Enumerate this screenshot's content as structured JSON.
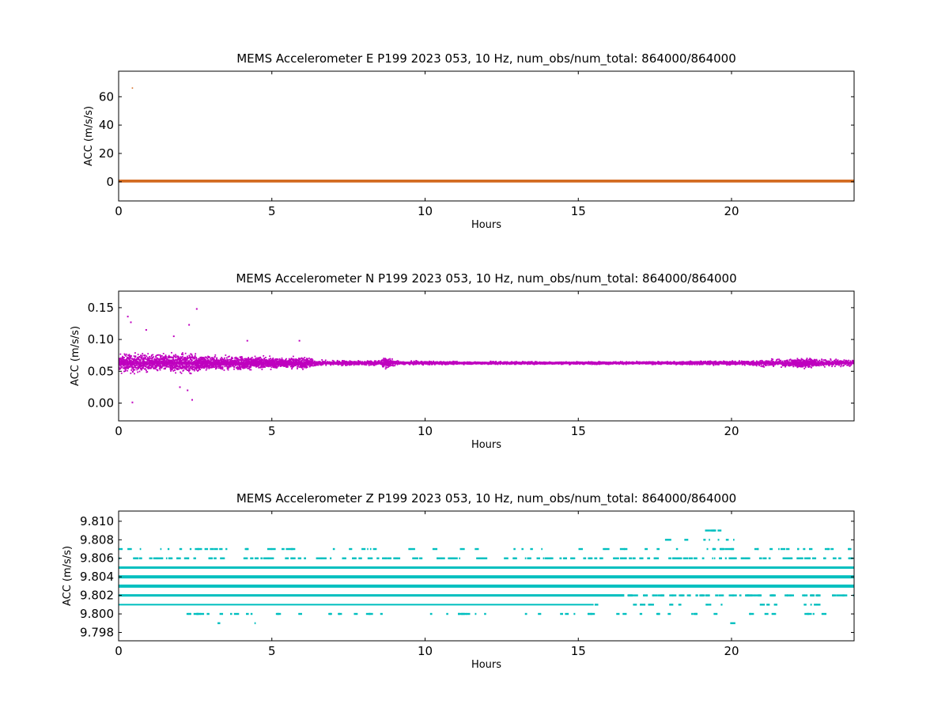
{
  "colors": {
    "E": "#d2691e",
    "N": "#bf00bf",
    "Z": "#00bfbf",
    "frame": "#000000"
  },
  "chart_data": [
    {
      "type": "scatter",
      "title": "MEMS Accelerometer E P199 2023 053, 10 Hz, num_obs/num_total: 864000/864000",
      "xlabel": "Hours",
      "ylabel": "ACC (m/s/s)",
      "xlim": [
        0,
        24
      ],
      "ylim": [
        -13.5,
        78
      ],
      "xticks": [
        "0",
        "5",
        "10",
        "15",
        "20"
      ],
      "xtick_values": [
        0,
        5,
        10,
        15,
        20
      ],
      "yticks": [
        "0",
        "20",
        "40",
        "60"
      ],
      "ytick_values": [
        0,
        20,
        40,
        60
      ],
      "series": [
        {
          "band": {
            "x": [
              0,
              24
            ],
            "center": 0.1,
            "min": -0.5,
            "max": 0.7
          },
          "outliers": [
            {
              "x": 0.45,
              "y": 66
            }
          ]
        }
      ]
    },
    {
      "type": "scatter",
      "title": "MEMS Accelerometer N P199 2023 053, 10 Hz, num_obs/num_total: 864000/864000",
      "xlabel": "Hours",
      "ylabel": "ACC (m/s/s)",
      "xlim": [
        0,
        24
      ],
      "ylim": [
        -0.028,
        0.176
      ],
      "xticks": [
        "0",
        "5",
        "10",
        "15",
        "20"
      ],
      "xtick_values": [
        0,
        5,
        10,
        15,
        20
      ],
      "yticks": [
        "0.00",
        "0.05",
        "0.10",
        "0.15"
      ],
      "ytick_values": [
        0.0,
        0.05,
        0.1,
        0.15
      ],
      "series": [
        {
          "center": 0.063,
          "envelope": [
            [
              0,
              0.013
            ],
            [
              0.5,
              0.014
            ],
            [
              1,
              0.012
            ],
            [
              1.5,
              0.013
            ],
            [
              2,
              0.015
            ],
            [
              2.5,
              0.014
            ],
            [
              3,
              0.011
            ],
            [
              3.5,
              0.009
            ],
            [
              4,
              0.01
            ],
            [
              4.5,
              0.009
            ],
            [
              5,
              0.008
            ],
            [
              5.5,
              0.007
            ],
            [
              6,
              0.01
            ],
            [
              6.5,
              0.004
            ],
            [
              7,
              0.004
            ],
            [
              7.5,
              0.004
            ],
            [
              8,
              0.003
            ],
            [
              8.8,
              0.007
            ],
            [
              9.2,
              0.002
            ],
            [
              10,
              0.003
            ],
            [
              11,
              0.002
            ],
            [
              12,
              0.002
            ],
            [
              12.3,
              0.003
            ],
            [
              13,
              0.002
            ],
            [
              14,
              0.002
            ],
            [
              15,
              0.002
            ],
            [
              16,
              0.002
            ],
            [
              17,
              0.002
            ],
            [
              18,
              0.002
            ],
            [
              19,
              0.003
            ],
            [
              20,
              0.003
            ],
            [
              20.5,
              0.004
            ],
            [
              21,
              0.005
            ],
            [
              21.5,
              0.005
            ],
            [
              22,
              0.006
            ],
            [
              22.3,
              0.008
            ],
            [
              23,
              0.005
            ],
            [
              24,
              0.006
            ]
          ],
          "outliers": [
            {
              "x": 0.3,
              "y": 0.136
            },
            {
              "x": 0.4,
              "y": 0.127
            },
            {
              "x": 0.45,
              "y": 0.001
            },
            {
              "x": 0.9,
              "y": 0.115
            },
            {
              "x": 1.8,
              "y": 0.105
            },
            {
              "x": 2.3,
              "y": 0.123
            },
            {
              "x": 2.4,
              "y": 0.005
            },
            {
              "x": 2.55,
              "y": 0.148
            },
            {
              "x": 2.25,
              "y": 0.02
            },
            {
              "x": 2.0,
              "y": 0.025
            },
            {
              "x": 4.2,
              "y": 0.098
            },
            {
              "x": 5.9,
              "y": 0.098
            }
          ]
        }
      ]
    },
    {
      "type": "scatter",
      "title": "MEMS Accelerometer Z P199 2023 053, 10 Hz, num_obs/num_total: 864000/864000",
      "xlabel": "Hours",
      "ylabel": "ACC (m/s/s)",
      "xlim": [
        0,
        24
      ],
      "ylim": [
        9.7971,
        9.8111
      ],
      "xticks": [
        "0",
        "5",
        "10",
        "15",
        "20"
      ],
      "xtick_values": [
        0,
        5,
        10,
        15,
        20
      ],
      "yticks": [
        "9.798",
        "9.800",
        "9.802",
        "9.804",
        "9.806",
        "9.808",
        "9.810"
      ],
      "ytick_values": [
        9.798,
        9.8,
        9.802,
        9.804,
        9.806,
        9.808,
        9.81
      ],
      "series": [
        {
          "levels": [
            {
              "y": 9.805,
              "segments": [
                [
                  0,
                  24
                ]
              ],
              "weight": 3
            },
            {
              "y": 9.804,
              "segments": [
                [
                  0,
                  24
                ]
              ],
              "weight": 4
            },
            {
              "y": 9.803,
              "segments": [
                [
                  0,
                  24
                ]
              ],
              "weight": 4
            },
            {
              "y": 9.802,
              "segments": [
                [
                  0,
                  16.5
                ]
              ],
              "weight": 3
            },
            {
              "y": 9.801,
              "segments": [
                [
                  0,
                  15.5
                ]
              ],
              "weight": 2
            }
          ],
          "sparse_levels": [
            {
              "y": 9.809,
              "range": [
                18.9,
                19.9
              ],
              "count": 5
            },
            {
              "y": 9.808,
              "range": [
                17.8,
                20.2
              ],
              "count": 8
            },
            {
              "y": 9.807,
              "range": [
                0,
                24
              ],
              "count": 70
            },
            {
              "y": 9.806,
              "range": [
                0,
                24
              ],
              "count": 160
            },
            {
              "y": 9.802,
              "range": [
                16.5,
                24
              ],
              "count": 70
            },
            {
              "y": 9.801,
              "range": [
                15.5,
                23
              ],
              "count": 20
            },
            {
              "y": 9.8,
              "range": [
                2,
                23
              ],
              "count": 60
            },
            {
              "y": 9.799,
              "range": [
                1,
                22
              ],
              "count": 3
            }
          ]
        }
      ]
    }
  ]
}
